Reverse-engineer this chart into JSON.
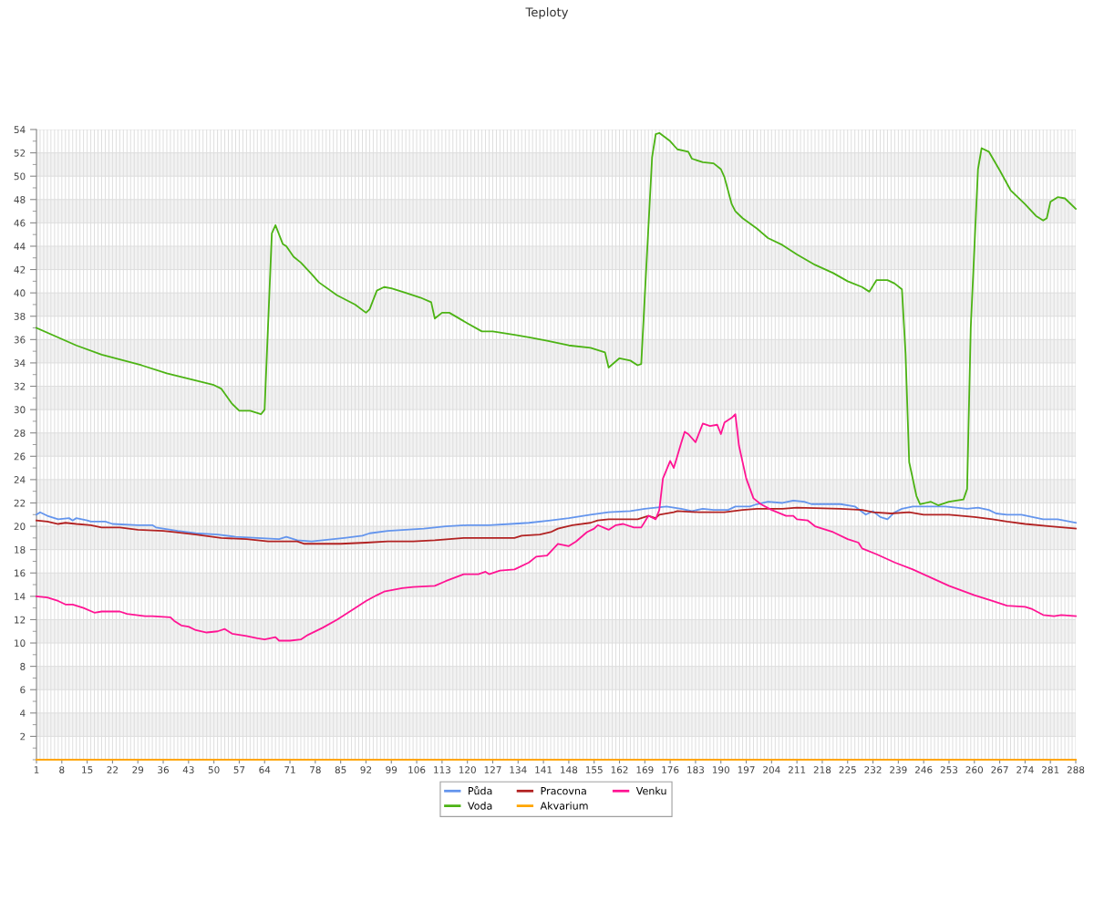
{
  "chart_data": {
    "type": "line",
    "title": "Teploty",
    "xlim": [
      1,
      288
    ],
    "xticks": [
      1,
      {
        "value": 2,
        "label": null
      },
      {
        "value": 3,
        "label": null
      },
      {
        "value": 4,
        "label": null
      },
      {
        "value": 5,
        "label": null
      },
      {
        "value": 6,
        "label": null
      },
      {
        "value": 7,
        "label": null
      },
      8,
      {
        "value": 9,
        "label": null
      },
      {
        "value": 10,
        "label": null
      },
      {
        "value": 11,
        "label": null
      },
      {
        "value": 12,
        "label": null
      },
      {
        "value": 13,
        "label": null
      },
      {
        "value": 14,
        "label": null
      },
      15,
      {
        "value": 16,
        "label": null
      },
      {
        "value": 17,
        "label": null
      },
      {
        "value": 18,
        "label": null
      },
      {
        "value": 19,
        "label": null
      },
      {
        "value": 20,
        "label": null
      },
      {
        "value": 21,
        "label": null
      },
      22,
      {
        "value": 23,
        "label": null
      },
      {
        "value": 24,
        "label": null
      },
      {
        "value": 25,
        "label": null
      },
      {
        "value": 26,
        "label": null
      },
      {
        "value": 27,
        "label": null
      },
      {
        "value": 28,
        "label": null
      },
      29,
      {
        "value": 30,
        "label": null
      },
      {
        "value": 31,
        "label": null
      },
      {
        "value": 32,
        "label": null
      },
      {
        "value": 33,
        "label": null
      },
      {
        "value": 34,
        "label": null
      },
      {
        "value": 35,
        "label": null
      },
      36,
      {
        "value": 37,
        "label": null
      },
      {
        "value": 38,
        "label": null
      },
      {
        "value": 39,
        "label": null
      },
      {
        "value": 40,
        "label": null
      },
      {
        "value": 41,
        "label": null
      },
      {
        "value": 42,
        "label": null
      },
      43,
      {
        "value": 44,
        "label": null
      },
      {
        "value": 45,
        "label": null
      },
      {
        "value": 46,
        "label": null
      },
      {
        "value": 47,
        "label": null
      },
      {
        "value": 48,
        "label": null
      },
      {
        "value": 49,
        "label": null
      },
      50,
      {
        "value": 51,
        "label": null
      },
      {
        "value": 52,
        "label": null
      },
      {
        "value": 53,
        "label": null
      },
      {
        "value": 54,
        "label": null
      },
      {
        "value": 55,
        "label": null
      },
      {
        "value": 56,
        "label": null
      },
      57,
      {
        "value": 58,
        "label": null
      },
      {
        "value": 59,
        "label": null
      },
      {
        "value": 60,
        "label": null
      },
      {
        "value": 61,
        "label": null
      },
      {
        "value": 62,
        "label": null
      },
      {
        "value": 63,
        "label": null
      },
      64,
      {
        "value": 65,
        "label": null
      },
      {
        "value": 66,
        "label": null
      },
      {
        "value": 67,
        "label": null
      },
      {
        "value": 68,
        "label": null
      },
      {
        "value": 69,
        "label": null
      },
      {
        "value": 70,
        "label": null
      },
      71,
      {
        "value": 72,
        "label": null
      },
      {
        "value": 73,
        "label": null
      },
      {
        "value": 74,
        "label": null
      },
      {
        "value": 75,
        "label": null
      },
      {
        "value": 76,
        "label": null
      },
      {
        "value": 77,
        "label": null
      },
      78,
      {
        "value": 79,
        "label": null
      },
      {
        "value": 80,
        "label": null
      },
      {
        "value": 81,
        "label": null
      },
      {
        "value": 82,
        "label": null
      },
      {
        "value": 83,
        "label": null
      },
      {
        "value": 84,
        "label": null
      },
      85,
      {
        "value": 86,
        "label": null
      },
      {
        "value": 87,
        "label": null
      },
      {
        "value": 88,
        "label": null
      },
      {
        "value": 89,
        "label": null
      },
      {
        "value": 90,
        "label": null
      },
      {
        "value": 91,
        "label": null
      },
      92,
      {
        "value": 93,
        "label": null
      },
      {
        "value": 94,
        "label": null
      },
      {
        "value": 95,
        "label": null
      },
      {
        "value": 96,
        "label": null
      },
      {
        "value": 97,
        "label": null
      },
      {
        "value": 98,
        "label": null
      },
      99,
      {
        "value": 100,
        "label": null
      },
      {
        "value": 101,
        "label": null
      },
      {
        "value": 102,
        "label": null
      },
      {
        "value": 103,
        "label": null
      },
      {
        "value": 104,
        "label": null
      },
      {
        "value": 105,
        "label": null
      },
      106,
      {
        "value": 107,
        "label": null
      },
      {
        "value": 108,
        "label": null
      },
      {
        "value": 109,
        "label": null
      },
      {
        "value": 110,
        "label": null
      },
      {
        "value": 111,
        "label": null
      },
      {
        "value": 112,
        "label": null
      },
      113,
      {
        "value": 114,
        "label": null
      },
      {
        "value": 115,
        "label": null
      },
      {
        "value": 116,
        "label": null
      },
      {
        "value": 117,
        "label": null
      },
      {
        "value": 118,
        "label": null
      },
      {
        "value": 119,
        "label": null
      },
      120,
      {
        "value": 121,
        "label": null
      },
      {
        "value": 122,
        "label": null
      },
      {
        "value": 123,
        "label": null
      },
      {
        "value": 124,
        "label": null
      },
      {
        "value": 125,
        "label": null
      },
      {
        "value": 126,
        "label": null
      },
      127,
      {
        "value": 128,
        "label": null
      },
      {
        "value": 129,
        "label": null
      },
      {
        "value": 130,
        "label": null
      },
      {
        "value": 131,
        "label": null
      },
      {
        "value": 132,
        "label": null
      },
      {
        "value": 133,
        "label": null
      },
      134,
      {
        "value": 135,
        "label": null
      },
      {
        "value": 136,
        "label": null
      },
      {
        "value": 137,
        "label": null
      },
      {
        "value": 138,
        "label": null
      },
      {
        "value": 139,
        "label": null
      },
      {
        "value": 140,
        "label": null
      },
      141,
      {
        "value": 142,
        "label": null
      },
      {
        "value": 143,
        "label": null
      },
      {
        "value": 144,
        "label": null
      },
      {
        "value": 145,
        "label": null
      },
      {
        "value": 146,
        "label": null
      },
      {
        "value": 147,
        "label": null
      },
      148,
      {
        "value": 149,
        "label": null
      },
      {
        "value": 150,
        "label": null
      },
      {
        "value": 151,
        "label": null
      },
      {
        "value": 152,
        "label": null
      },
      {
        "value": 153,
        "label": null
      },
      {
        "value": 154,
        "label": null
      },
      155,
      {
        "value": 156,
        "label": null
      },
      {
        "value": 157,
        "label": null
      },
      {
        "value": 158,
        "label": null
      },
      {
        "value": 159,
        "label": null
      },
      {
        "value": 160,
        "label": null
      },
      {
        "value": 161,
        "label": null
      },
      162,
      {
        "value": 163,
        "label": null
      },
      {
        "value": 164,
        "label": null
      },
      {
        "value": 165,
        "label": null
      },
      {
        "value": 166,
        "label": null
      },
      {
        "value": 167,
        "label": null
      },
      {
        "value": 168,
        "label": null
      },
      169,
      {
        "value": 170,
        "label": null
      },
      {
        "value": 171,
        "label": null
      },
      {
        "value": 172,
        "label": null
      },
      {
        "value": 173,
        "label": null
      },
      {
        "value": 174,
        "label": null
      },
      {
        "value": 175,
        "label": null
      },
      176,
      {
        "value": 177,
        "label": null
      },
      {
        "value": 178,
        "label": null
      },
      {
        "value": 179,
        "label": null
      },
      {
        "value": 180,
        "label": null
      },
      {
        "value": 181,
        "label": null
      },
      {
        "value": 182,
        "label": null
      },
      183,
      {
        "value": 184,
        "label": null
      },
      {
        "value": 185,
        "label": null
      },
      {
        "value": 186,
        "label": null
      },
      {
        "value": 187,
        "label": null
      },
      {
        "value": 188,
        "label": null
      },
      {
        "value": 189,
        "label": null
      },
      190,
      {
        "value": 191,
        "label": null
      },
      {
        "value": 192,
        "label": null
      },
      {
        "value": 193,
        "label": null
      },
      {
        "value": 194,
        "label": null
      },
      {
        "value": 195,
        "label": null
      },
      {
        "value": 196,
        "label": null
      },
      197,
      {
        "value": 198,
        "label": null
      },
      {
        "value": 199,
        "label": null
      },
      {
        "value": 200,
        "label": null
      },
      {
        "value": 201,
        "label": null
      },
      {
        "value": 202,
        "label": null
      },
      {
        "value": 203,
        "label": null
      },
      204,
      {
        "value": 205,
        "label": null
      },
      {
        "value": 206,
        "label": null
      },
      {
        "value": 207,
        "label": null
      },
      {
        "value": 208,
        "label": null
      },
      {
        "value": 209,
        "label": null
      },
      {
        "value": 210,
        "label": null
      },
      211,
      {
        "value": 212,
        "label": null
      },
      {
        "value": 213,
        "label": null
      },
      {
        "value": 214,
        "label": null
      },
      {
        "value": 215,
        "label": null
      },
      {
        "value": 216,
        "label": null
      },
      {
        "value": 217,
        "label": null
      },
      218,
      {
        "value": 219,
        "label": null
      },
      {
        "value": 220,
        "label": null
      },
      {
        "value": 221,
        "label": null
      },
      {
        "value": 222,
        "label": null
      },
      {
        "value": 223,
        "label": null
      },
      {
        "value": 224,
        "label": null
      },
      225,
      {
        "value": 226,
        "label": null
      },
      {
        "value": 227,
        "label": null
      },
      {
        "value": 228,
        "label": null
      },
      {
        "value": 229,
        "label": null
      },
      {
        "value": 230,
        "label": null
      },
      {
        "value": 231,
        "label": null
      },
      232,
      {
        "value": 233,
        "label": null
      },
      {
        "value": 234,
        "label": null
      },
      {
        "value": 235,
        "label": null
      },
      {
        "value": 236,
        "label": null
      },
      {
        "value": 237,
        "label": null
      },
      {
        "value": 238,
        "label": null
      },
      239,
      {
        "value": 240,
        "label": null
      },
      {
        "value": 241,
        "label": null
      },
      {
        "value": 242,
        "label": null
      },
      {
        "value": 243,
        "label": null
      },
      {
        "value": 244,
        "label": null
      },
      {
        "value": 245,
        "label": null
      },
      246,
      {
        "value": 247,
        "label": null
      },
      {
        "value": 248,
        "label": null
      },
      {
        "value": 249,
        "label": null
      },
      {
        "value": 250,
        "label": null
      },
      {
        "value": 251,
        "label": null
      },
      {
        "value": 252,
        "label": null
      },
      253,
      {
        "value": 254,
        "label": null
      },
      {
        "value": 255,
        "label": null
      },
      {
        "value": 256,
        "label": null
      },
      {
        "value": 257,
        "label": null
      },
      {
        "value": 258,
        "label": null
      },
      {
        "value": 259,
        "label": null
      },
      260,
      {
        "value": 261,
        "label": null
      },
      {
        "value": 262,
        "label": null
      },
      {
        "value": 263,
        "label": null
      },
      {
        "value": 264,
        "label": null
      },
      {
        "value": 265,
        "label": null
      },
      {
        "value": 266,
        "label": null
      },
      267,
      {
        "value": 268,
        "label": null
      },
      {
        "value": 269,
        "label": null
      },
      {
        "value": 270,
        "label": null
      },
      {
        "value": 271,
        "label": null
      },
      {
        "value": 272,
        "label": null
      },
      {
        "value": 273,
        "label": null
      },
      274,
      {
        "value": 275,
        "label": null
      },
      {
        "value": 276,
        "label": null
      },
      {
        "value": 277,
        "label": null
      },
      {
        "value": 278,
        "label": null
      },
      {
        "value": 279,
        "label": null
      },
      {
        "value": 280,
        "label": null
      },
      281,
      {
        "value": 282,
        "label": null
      },
      {
        "value": 283,
        "label": null
      },
      {
        "value": 284,
        "label": null
      },
      {
        "value": 285,
        "label": null
      },
      {
        "value": 286,
        "label": null
      },
      {
        "value": 287,
        "label": null
      },
      288
    ],
    "ylim": [
      0,
      54
    ],
    "yticks": [
      {
        "value": 0,
        "label": null
      },
      {
        "value": 1,
        "label": null
      },
      2,
      {
        "value": 3,
        "label": null
      },
      4,
      {
        "value": 5,
        "label": null
      },
      6,
      {
        "value": 7,
        "label": null
      },
      8,
      {
        "value": 9,
        "label": null
      },
      10,
      {
        "value": 11,
        "label": null
      },
      12,
      {
        "value": 13,
        "label": null
      },
      14,
      {
        "value": 15,
        "label": null
      },
      16,
      {
        "value": 17,
        "label": null
      },
      18,
      {
        "value": 19,
        "label": null
      },
      20,
      {
        "value": 21,
        "label": null
      },
      22,
      {
        "value": 23,
        "label": null
      },
      24,
      {
        "value": 25,
        "label": null
      },
      26,
      {
        "value": 27,
        "label": null
      },
      28,
      {
        "value": 29,
        "label": null
      },
      30,
      {
        "value": 31,
        "label": null
      },
      32,
      {
        "value": 33,
        "label": null
      },
      34,
      {
        "value": 35,
        "label": null
      },
      36,
      {
        "value": 37,
        "label": null
      },
      38,
      {
        "value": 39,
        "label": null
      },
      40,
      {
        "value": 41,
        "label": null
      },
      42,
      {
        "value": 43,
        "label": null
      },
      44,
      {
        "value": 45,
        "label": null
      },
      46,
      {
        "value": 47,
        "label": null
      },
      48,
      {
        "value": 49,
        "label": null
      },
      50,
      {
        "value": 51,
        "label": null
      },
      52,
      {
        "value": 53,
        "label": null
      },
      54
    ],
    "grid": true,
    "legend": "bottom",
    "bands": [
      {
        "axis": "y",
        "from": 2,
        "to": 4,
        "color": "#f2f2f2"
      },
      {
        "axis": "y",
        "from": 6,
        "to": 8,
        "color": "#f2f2f2"
      },
      {
        "axis": "y",
        "from": 10,
        "to": 12,
        "color": "#f2f2f2"
      },
      {
        "axis": "y",
        "from": 14,
        "to": 16,
        "color": "#f2f2f2"
      },
      {
        "axis": "y",
        "from": 18,
        "to": 20,
        "color": "#f2f2f2"
      },
      {
        "axis": "y",
        "from": 22,
        "to": 24,
        "color": "#f2f2f2"
      },
      {
        "axis": "y",
        "from": 26,
        "to": 28,
        "color": "#f2f2f2"
      },
      {
        "axis": "y",
        "from": 30,
        "to": 32,
        "color": "#f2f2f2"
      },
      {
        "axis": "y",
        "from": 34,
        "to": 36,
        "color": "#f2f2f2"
      },
      {
        "axis": "y",
        "from": 38,
        "to": 40,
        "color": "#f2f2f2"
      },
      {
        "axis": "y",
        "from": 42,
        "to": 44,
        "color": "#f2f2f2"
      },
      {
        "axis": "y",
        "from": 46,
        "to": 48,
        "color": "#f2f2f2"
      },
      {
        "axis": "y",
        "from": 50,
        "to": 52,
        "color": "#f2f2f2"
      }
    ],
    "series": [
      {
        "name": "Půda",
        "color": "#6495ed",
        "x": [
          1,
          2,
          4,
          7,
          10,
          11,
          12,
          15,
          16,
          20,
          22,
          29,
          33,
          34,
          40,
          45,
          51,
          56,
          62,
          68,
          70,
          73,
          77,
          80,
          86,
          91,
          93,
          98,
          103,
          108,
          114,
          120,
          126,
          132,
          137,
          143,
          148,
          154,
          159,
          165,
          169,
          175,
          179,
          182,
          185,
          188,
          192,
          194,
          198,
          200,
          203,
          207,
          210,
          213,
          215,
          223,
          227,
          230,
          232,
          234,
          236,
          238,
          240,
          243,
          252,
          258,
          261,
          264,
          266,
          269,
          273,
          276,
          279,
          283,
          288
        ],
        "values": [
          21.0,
          21.2,
          20.9,
          20.6,
          20.7,
          20.5,
          20.7,
          20.5,
          20.4,
          20.4,
          20.2,
          20.1,
          20.1,
          19.9,
          19.6,
          19.4,
          19.3,
          19.1,
          19.0,
          18.9,
          19.1,
          18.8,
          18.7,
          18.8,
          19.0,
          19.2,
          19.4,
          19.6,
          19.7,
          19.8,
          20.0,
          20.1,
          20.1,
          20.2,
          20.3,
          20.5,
          20.7,
          21.0,
          21.2,
          21.3,
          21.5,
          21.7,
          21.5,
          21.3,
          21.5,
          21.4,
          21.4,
          21.7,
          21.7,
          21.9,
          22.1,
          22.0,
          22.2,
          22.1,
          21.9,
          21.9,
          21.7,
          21.0,
          21.3,
          20.8,
          20.6,
          21.2,
          21.5,
          21.7,
          21.7,
          21.5,
          21.6,
          21.4,
          21.1,
          21.0,
          21.0,
          20.8,
          20.6,
          20.6,
          20.3
        ]
      },
      {
        "name": "Voda",
        "color": "#4cb314",
        "x": [
          1,
          12,
          19,
          30,
          37,
          50,
          52,
          55,
          57,
          60,
          63,
          64,
          66,
          67,
          69,
          70,
          72,
          74,
          77,
          79,
          84,
          89,
          92,
          93,
          95,
          97,
          99,
          103,
          107,
          110,
          111,
          113,
          115,
          120,
          124,
          127,
          133,
          137,
          142,
          148,
          154,
          158,
          159,
          162,
          165,
          167,
          168,
          171,
          172,
          173,
          176,
          178,
          181,
          182,
          185,
          188,
          190,
          191,
          193,
          194,
          196,
          200,
          203,
          207,
          211,
          216,
          221,
          225,
          229,
          231,
          233,
          236,
          238,
          240,
          241,
          242,
          244,
          245,
          248,
          250,
          253,
          257,
          258,
          259,
          261,
          262,
          264,
          267,
          270,
          274,
          277,
          279,
          280,
          281,
          283,
          285,
          288
        ],
        "values": [
          37.0,
          35.5,
          34.7,
          33.8,
          33.1,
          32.1,
          31.8,
          30.5,
          29.9,
          29.9,
          29.6,
          30.0,
          45.1,
          45.8,
          44.2,
          44.0,
          43.1,
          42.6,
          41.6,
          40.9,
          39.8,
          39.0,
          38.3,
          38.6,
          40.2,
          40.5,
          40.4,
          40.0,
          39.6,
          39.2,
          37.8,
          38.3,
          38.3,
          37.4,
          36.7,
          36.7,
          36.4,
          36.2,
          35.9,
          35.5,
          35.3,
          34.9,
          33.6,
          34.4,
          34.2,
          33.8,
          33.9,
          51.6,
          53.6,
          53.7,
          53.0,
          52.3,
          52.1,
          51.5,
          51.2,
          51.1,
          50.6,
          49.9,
          47.6,
          47.0,
          46.4,
          45.5,
          44.7,
          44.1,
          43.3,
          42.4,
          41.7,
          41.0,
          40.5,
          40.1,
          41.1,
          41.1,
          40.8,
          40.3,
          34.8,
          25.5,
          22.6,
          21.9,
          22.1,
          21.8,
          22.1,
          22.3,
          23.2,
          37.0,
          50.6,
          52.4,
          52.1,
          50.5,
          48.8,
          47.6,
          46.6,
          46.2,
          46.4,
          47.8,
          48.2,
          48.1,
          47.2
        ]
      },
      {
        "name": "Pracovna",
        "color": "#b22222",
        "x": [
          1,
          4,
          7,
          9,
          12,
          16,
          19,
          24,
          29,
          36,
          39,
          45,
          52,
          59,
          65,
          73,
          75,
          80,
          85,
          92,
          98,
          105,
          111,
          119,
          126,
          133,
          135,
          140,
          143,
          145,
          149,
          154,
          156,
          159,
          167,
          170,
          172,
          173,
          177,
          178,
          184,
          191,
          196,
          200,
          207,
          211,
          223,
          229,
          232,
          237,
          242,
          246,
          253,
          260,
          265,
          269,
          274,
          281,
          288
        ],
        "values": [
          20.5,
          20.4,
          20.2,
          20.3,
          20.2,
          20.1,
          19.9,
          19.9,
          19.7,
          19.6,
          19.5,
          19.3,
          19.0,
          18.9,
          18.7,
          18.7,
          18.5,
          18.5,
          18.5,
          18.6,
          18.7,
          18.7,
          18.8,
          19.0,
          19.0,
          19.0,
          19.2,
          19.3,
          19.5,
          19.8,
          20.1,
          20.3,
          20.5,
          20.6,
          20.6,
          20.9,
          20.7,
          21.0,
          21.2,
          21.3,
          21.2,
          21.2,
          21.4,
          21.5,
          21.5,
          21.6,
          21.5,
          21.4,
          21.2,
          21.1,
          21.2,
          21.0,
          21.0,
          20.8,
          20.6,
          20.4,
          20.2,
          20.0,
          19.8
        ]
      },
      {
        "name": "Akvarium",
        "color": "#ffa500",
        "x": [
          1,
          288
        ],
        "values": [
          0,
          0
        ]
      },
      {
        "name": "Venku",
        "color": "#ff1493",
        "x": [
          1,
          4,
          7,
          9,
          11,
          14,
          17,
          19,
          24,
          26,
          31,
          33,
          38,
          39,
          41,
          43,
          45,
          48,
          51,
          53,
          55,
          59,
          62,
          64,
          67,
          68,
          71,
          74,
          76,
          80,
          84,
          89,
          92,
          95,
          97,
          102,
          105,
          111,
          114,
          119,
          123,
          125,
          126,
          129,
          133,
          137,
          139,
          142,
          145,
          148,
          150,
          153,
          155,
          156,
          159,
          161,
          163,
          166,
          168,
          170,
          172,
          173,
          174,
          176,
          177,
          179,
          180,
          181,
          183,
          185,
          187,
          189,
          190,
          191,
          193,
          194,
          195,
          197,
          199,
          201,
          204,
          208,
          210,
          211,
          214,
          216,
          221,
          225,
          228,
          229,
          233,
          238,
          243,
          248,
          253,
          260,
          265,
          269,
          274,
          276,
          279,
          282,
          284,
          288
        ],
        "values": [
          14.0,
          13.9,
          13.6,
          13.3,
          13.3,
          13.0,
          12.6,
          12.7,
          12.7,
          12.5,
          12.3,
          12.3,
          12.2,
          11.9,
          11.5,
          11.4,
          11.1,
          10.9,
          11.0,
          11.2,
          10.8,
          10.6,
          10.4,
          10.3,
          10.5,
          10.2,
          10.2,
          10.3,
          10.7,
          11.3,
          12.0,
          13.0,
          13.6,
          14.1,
          14.4,
          14.7,
          14.8,
          14.9,
          15.3,
          15.9,
          15.9,
          16.1,
          15.9,
          16.2,
          16.3,
          16.9,
          17.4,
          17.5,
          18.5,
          18.3,
          18.7,
          19.5,
          19.8,
          20.1,
          19.7,
          20.1,
          20.2,
          19.9,
          19.9,
          20.9,
          20.6,
          21.4,
          24.1,
          25.6,
          25.0,
          27.1,
          28.1,
          27.9,
          27.2,
          28.8,
          28.6,
          28.7,
          27.9,
          28.9,
          29.3,
          29.6,
          26.9,
          24.1,
          22.4,
          21.9,
          21.4,
          20.9,
          20.9,
          20.6,
          20.5,
          20.0,
          19.5,
          18.9,
          18.6,
          18.1,
          17.6,
          16.9,
          16.3,
          15.6,
          14.9,
          14.1,
          13.6,
          13.2,
          13.1,
          12.9,
          12.4,
          12.3,
          12.4,
          12.3
        ]
      }
    ]
  }
}
